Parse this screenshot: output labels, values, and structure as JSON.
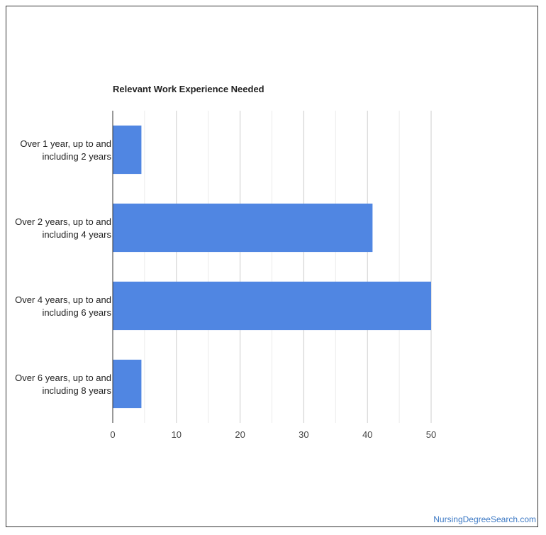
{
  "chart_data": {
    "type": "bar",
    "orientation": "horizontal",
    "title": "Relevant Work Experience Needed",
    "categories": [
      [
        "Over 1 year, up to and",
        "including 2 years"
      ],
      [
        "Over 2 years, up to and",
        "including 4 years"
      ],
      [
        "Over 4 years, up to and",
        "including 6 years"
      ],
      [
        "Over 6 years, up to and",
        "including 8 years"
      ]
    ],
    "values": [
      4.5,
      40.8,
      50,
      4.5
    ],
    "xlim": [
      0,
      50
    ],
    "xticks": [
      0,
      10,
      20,
      30,
      40,
      50
    ],
    "xlabel": "",
    "ylabel": "",
    "grid": true,
    "bar_color": "#5086e2",
    "grid_color": "#cccccc"
  },
  "footer": {
    "source_link": "NursingDegreeSearch.com"
  }
}
